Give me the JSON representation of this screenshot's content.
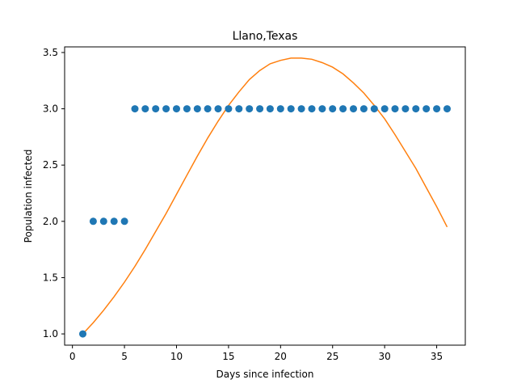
{
  "chart_data": {
    "type": "scatter",
    "title": "Llano,Texas",
    "xlabel": "Days since infection",
    "ylabel": "Population infected",
    "xlim": [
      -0.75,
      37.75
    ],
    "ylim": [
      0.9,
      3.55
    ],
    "xticks": [
      0,
      5,
      10,
      15,
      20,
      25,
      30,
      35
    ],
    "yticks": [
      1.0,
      1.5,
      2.0,
      2.5,
      3.0,
      3.5
    ],
    "xtick_labels": [
      "0",
      "5",
      "10",
      "15",
      "20",
      "25",
      "30",
      "35"
    ],
    "ytick_labels": [
      "1.0",
      "1.5",
      "2.0",
      "2.5",
      "3.0",
      "3.5"
    ],
    "grid": false,
    "legend": "none",
    "series": [
      {
        "kind": "scatter",
        "color": "#1f77b4",
        "x": [
          1,
          2,
          3,
          4,
          5,
          6,
          7,
          8,
          9,
          10,
          11,
          12,
          13,
          14,
          15,
          16,
          17,
          18,
          19,
          20,
          21,
          22,
          23,
          24,
          25,
          26,
          27,
          28,
          29,
          30,
          31,
          32,
          33,
          34,
          35,
          36
        ],
        "y": [
          1,
          2,
          2,
          2,
          2,
          3,
          3,
          3,
          3,
          3,
          3,
          3,
          3,
          3,
          3,
          3,
          3,
          3,
          3,
          3,
          3,
          3,
          3,
          3,
          3,
          3,
          3,
          3,
          3,
          3,
          3,
          3,
          3,
          3,
          3,
          3
        ]
      },
      {
        "kind": "line",
        "color": "#ff7f0e",
        "x": [
          1,
          2,
          3,
          4,
          5,
          6,
          7,
          8,
          9,
          10,
          11,
          12,
          13,
          14,
          15,
          16,
          17,
          18,
          19,
          20,
          21,
          22,
          23,
          24,
          25,
          26,
          27,
          28,
          29,
          30,
          31,
          32,
          33,
          34,
          35,
          36
        ],
        "y": [
          1.0,
          1.1,
          1.21,
          1.33,
          1.46,
          1.6,
          1.75,
          1.91,
          2.07,
          2.24,
          2.41,
          2.58,
          2.74,
          2.89,
          3.03,
          3.15,
          3.26,
          3.34,
          3.4,
          3.43,
          3.45,
          3.45,
          3.44,
          3.41,
          3.37,
          3.31,
          3.23,
          3.14,
          3.03,
          2.91,
          2.77,
          2.62,
          2.47,
          2.3,
          2.13,
          1.95
        ]
      }
    ]
  }
}
